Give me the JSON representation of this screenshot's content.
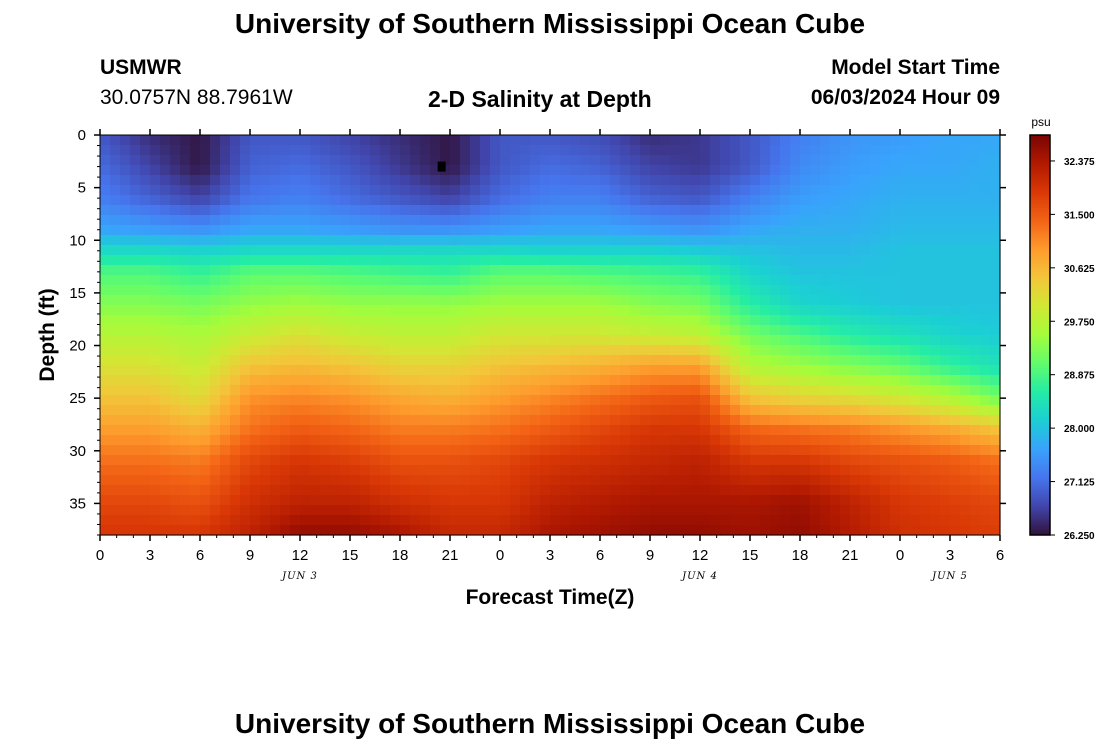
{
  "header": {
    "title": "University of Southern Mississippi Ocean Cube",
    "station": "USMWR",
    "location": "30.0757N  88.7961W",
    "chart_title": "2-D Salinity at Depth",
    "model_start_label": "Model Start Time",
    "model_start_value": "06/03/2024 Hour 09"
  },
  "footer": {
    "title": "University of Southern Mississippi Ocean Cube"
  },
  "colors": {
    "colormap": [
      "#30123b",
      "#4145ab",
      "#4675ed",
      "#39a2fc",
      "#1bcfd4",
      "#24eca6",
      "#61fc6c",
      "#a4fc3b",
      "#d1e834",
      "#f3c63a",
      "#fe9b2d",
      "#f36315",
      "#d93806",
      "#b11901",
      "#7a0403"
    ]
  },
  "chart_data": {
    "type": "heatmap",
    "title": "2-D Salinity at Depth",
    "xlabel": "Forecast Time(Z)",
    "ylabel": "Depth (ft)",
    "x_ticks": [
      "0",
      "3",
      "6",
      "9",
      "12",
      "15",
      "18",
      "21",
      "0",
      "3",
      "6",
      "9",
      "12",
      "15",
      "18",
      "21",
      "0",
      "3",
      "6"
    ],
    "x_range_hours": [
      0,
      54
    ],
    "date_labels": [
      {
        "label": "JUN 3",
        "hour": 12
      },
      {
        "label": "JUN 4",
        "hour": 36
      },
      {
        "label": "JUN 5",
        "hour": 51
      }
    ],
    "y_ticks": [
      0,
      5,
      10,
      15,
      20,
      25,
      30,
      35
    ],
    "ylim": [
      0,
      38
    ],
    "y_inverted": true,
    "colorbar": {
      "unit": "psu",
      "min": 26.25,
      "max": 32.8,
      "ticks": [
        "32.375",
        "31.500",
        "30.625",
        "29.750",
        "28.875",
        "28.000",
        "27.125",
        "26.250"
      ]
    },
    "hours": [
      0,
      3,
      6,
      9,
      12,
      15,
      18,
      21,
      24,
      27,
      30,
      33,
      36,
      39,
      42,
      45,
      48,
      51,
      54
    ],
    "depths": [
      0,
      3,
      6,
      9,
      11,
      13,
      16,
      19,
      22,
      25,
      28,
      31,
      35,
      38
    ],
    "values": [
      [
        26.9,
        26.5,
        26.3,
        26.9,
        26.9,
        26.7,
        26.5,
        26.3,
        26.9,
        26.9,
        26.8,
        26.5,
        26.6,
        26.9,
        27.3,
        27.5,
        27.6,
        27.7,
        27.7
      ],
      [
        27.1,
        26.7,
        26.3,
        27.0,
        27.1,
        26.9,
        26.6,
        26.3,
        26.9,
        27.1,
        27.0,
        26.7,
        26.6,
        26.9,
        27.4,
        27.6,
        27.7,
        27.7,
        27.8
      ],
      [
        27.3,
        27.0,
        26.7,
        27.2,
        27.3,
        27.1,
        26.9,
        26.7,
        27.1,
        27.3,
        27.3,
        27.0,
        26.9,
        27.3,
        27.6,
        27.7,
        27.8,
        27.8,
        27.8
      ],
      [
        27.7,
        27.6,
        27.5,
        27.7,
        27.7,
        27.6,
        27.5,
        27.5,
        27.6,
        27.7,
        27.7,
        27.6,
        27.5,
        27.7,
        27.8,
        27.8,
        27.9,
        27.9,
        27.9
      ],
      [
        28.3,
        28.3,
        28.2,
        28.3,
        28.3,
        28.3,
        28.3,
        28.3,
        28.3,
        28.2,
        28.2,
        28.2,
        28.1,
        28.0,
        27.9,
        27.9,
        28.0,
        28.0,
        28.0
      ],
      [
        28.9,
        28.9,
        28.7,
        29.0,
        29.0,
        28.9,
        28.8,
        28.7,
        29.0,
        29.0,
        28.9,
        28.8,
        28.7,
        28.2,
        28.0,
        28.0,
        28.0,
        28.0,
        28.0
      ],
      [
        29.3,
        29.3,
        29.2,
        29.4,
        29.5,
        29.4,
        29.4,
        29.4,
        29.5,
        29.5,
        29.5,
        29.3,
        29.2,
        28.6,
        28.2,
        28.1,
        28.0,
        28.0,
        28.0
      ],
      [
        29.7,
        29.7,
        29.6,
        29.9,
        30.1,
        29.9,
        29.8,
        29.8,
        30.0,
        30.0,
        30.0,
        29.9,
        29.8,
        29.2,
        28.9,
        28.6,
        28.4,
        28.2,
        28.1
      ],
      [
        30.1,
        30.1,
        29.9,
        30.5,
        30.6,
        30.5,
        30.3,
        30.3,
        30.5,
        30.6,
        30.7,
        30.9,
        30.9,
        29.7,
        29.5,
        29.3,
        29.1,
        28.7,
        28.4
      ],
      [
        30.5,
        30.5,
        30.2,
        31.0,
        31.1,
        31.0,
        30.8,
        30.7,
        30.9,
        31.1,
        31.3,
        31.5,
        31.6,
        30.5,
        30.3,
        30.2,
        30.0,
        29.7,
        29.2
      ],
      [
        30.9,
        30.9,
        30.7,
        31.3,
        31.5,
        31.4,
        31.2,
        31.2,
        31.3,
        31.5,
        31.7,
        31.9,
        31.9,
        31.4,
        31.3,
        31.2,
        31.0,
        30.8,
        30.5
      ],
      [
        31.3,
        31.3,
        31.2,
        31.7,
        31.9,
        31.8,
        31.6,
        31.6,
        31.7,
        31.9,
        32.0,
        32.1,
        32.2,
        31.9,
        31.9,
        31.7,
        31.6,
        31.5,
        31.3
      ],
      [
        31.7,
        31.7,
        31.6,
        32.0,
        32.2,
        32.2,
        32.0,
        31.9,
        31.9,
        32.2,
        32.3,
        32.4,
        32.4,
        32.4,
        32.5,
        32.2,
        31.9,
        31.8,
        31.7
      ],
      [
        31.9,
        31.9,
        31.9,
        32.2,
        32.6,
        32.6,
        32.4,
        32.1,
        32.1,
        32.4,
        32.5,
        32.6,
        32.6,
        32.5,
        32.6,
        32.3,
        32.0,
        31.9,
        31.8
      ]
    ],
    "marker": {
      "hour": 20.5,
      "depth": 3
    }
  }
}
